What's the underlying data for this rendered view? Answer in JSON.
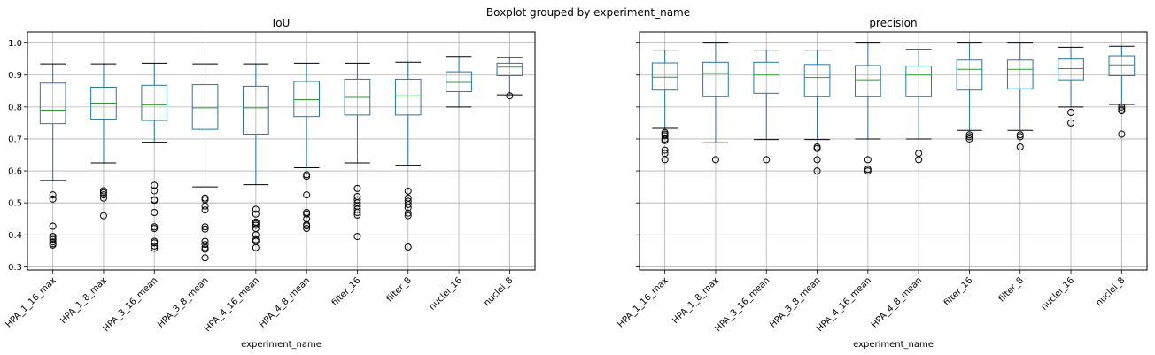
{
  "figure": {
    "suptitle": "Boxplot grouped by experiment_name"
  },
  "chart_data": [
    {
      "type": "box",
      "title": "IoU",
      "xlabel": "experiment_name",
      "ylabel": "",
      "ylim": [
        0.29,
        1.035
      ],
      "yticks": [
        0.3,
        0.4,
        0.5,
        0.6,
        0.7,
        0.8,
        0.9,
        1.0
      ],
      "ytick_labels": [
        "0.3",
        "0.4",
        "0.5",
        "0.6",
        "0.7",
        "0.8",
        "0.9",
        "1.0"
      ],
      "grid": true,
      "categories": [
        "HPA_1_16_max",
        "HPA_1_8_max",
        "HPA_3_16_mean",
        "HPA_3_8_mean",
        "HPA_4_16_mean",
        "HPA_4_8_mean",
        "filter_16",
        "filter_8",
        "nuclei_16",
        "nuclei_8"
      ],
      "boxes": [
        {
          "whislo": 0.57,
          "q1": 0.748,
          "med": 0.79,
          "q3": 0.875,
          "whishi": 0.935,
          "fliers": [
            0.525,
            0.512,
            0.427,
            0.395,
            0.39,
            0.385,
            0.378,
            0.372,
            0.368
          ]
        },
        {
          "whislo": 0.625,
          "q1": 0.762,
          "med": 0.812,
          "q3": 0.862,
          "whishi": 0.935,
          "fliers": [
            0.538,
            0.532,
            0.525,
            0.515,
            0.46
          ]
        },
        {
          "whislo": 0.69,
          "q1": 0.758,
          "med": 0.807,
          "q3": 0.868,
          "whishi": 0.937,
          "fliers": [
            0.555,
            0.538,
            0.51,
            0.508,
            0.47,
            0.425,
            0.42,
            0.38,
            0.375,
            0.365,
            0.358
          ]
        },
        {
          "whislo": 0.55,
          "q1": 0.73,
          "med": 0.797,
          "q3": 0.87,
          "whishi": 0.935,
          "fliers": [
            0.515,
            0.51,
            0.49,
            0.478,
            0.425,
            0.418,
            0.38,
            0.37,
            0.36,
            0.355,
            0.328
          ]
        },
        {
          "whislo": 0.557,
          "q1": 0.715,
          "med": 0.797,
          "q3": 0.865,
          "whishi": 0.935,
          "fliers": [
            0.48,
            0.465,
            0.44,
            0.435,
            0.43,
            0.42,
            0.4,
            0.385,
            0.38,
            0.36
          ]
        },
        {
          "whislo": 0.61,
          "q1": 0.77,
          "med": 0.823,
          "q3": 0.88,
          "whishi": 0.937,
          "fliers": [
            0.588,
            0.583,
            0.525,
            0.47,
            0.465,
            0.45,
            0.432,
            0.428,
            0.42
          ]
        },
        {
          "whislo": 0.625,
          "q1": 0.775,
          "med": 0.83,
          "q3": 0.887,
          "whishi": 0.937,
          "fliers": [
            0.545,
            0.52,
            0.51,
            0.5,
            0.49,
            0.48,
            0.47,
            0.462,
            0.395
          ]
        },
        {
          "whislo": 0.618,
          "q1": 0.775,
          "med": 0.835,
          "q3": 0.887,
          "whishi": 0.94,
          "fliers": [
            0.537,
            0.515,
            0.505,
            0.495,
            0.485,
            0.468,
            0.46,
            0.362
          ]
        },
        {
          "whislo": 0.8,
          "q1": 0.848,
          "med": 0.877,
          "q3": 0.91,
          "whishi": 0.958,
          "fliers": []
        },
        {
          "whislo": 0.838,
          "q1": 0.898,
          "med": 0.925,
          "q3": 0.937,
          "whishi": 0.955,
          "fliers": [
            0.835
          ]
        }
      ]
    },
    {
      "type": "box",
      "title": "precision",
      "xlabel": "experiment_name",
      "ylabel": "",
      "ylim": [
        0.29,
        1.035
      ],
      "yticks": [
        0.3,
        0.4,
        0.5,
        0.6,
        0.7,
        0.8,
        0.9,
        1.0
      ],
      "ytick_labels": [
        "",
        "",
        "",
        "",
        "",
        "",
        "",
        ""
      ],
      "grid": true,
      "categories": [
        "HPA_1_16_max",
        "HPA_1_8_max",
        "HPA_3_16_mean",
        "HPA_3_8_mean",
        "HPA_4_16_mean",
        "HPA_4_8_mean",
        "filter_16",
        "filter_8",
        "nuclei_16",
        "nuclei_8"
      ],
      "boxes": [
        {
          "whislo": 0.733,
          "q1": 0.853,
          "med": 0.893,
          "q3": 0.938,
          "whishi": 0.978,
          "fliers": [
            0.72,
            0.715,
            0.71,
            0.7,
            0.695,
            0.665,
            0.655,
            0.635
          ]
        },
        {
          "whislo": 0.688,
          "q1": 0.832,
          "med": 0.905,
          "q3": 0.94,
          "whishi": 1.0,
          "fliers": [
            0.635
          ]
        },
        {
          "whislo": 0.698,
          "q1": 0.843,
          "med": 0.9,
          "q3": 0.94,
          "whishi": 0.978,
          "fliers": [
            0.635
          ]
        },
        {
          "whislo": 0.698,
          "q1": 0.832,
          "med": 0.892,
          "q3": 0.933,
          "whishi": 0.978,
          "fliers": [
            0.675,
            0.67,
            0.635,
            0.6
          ]
        },
        {
          "whislo": 0.7,
          "q1": 0.832,
          "med": 0.885,
          "q3": 0.93,
          "whishi": 1.0,
          "fliers": [
            0.635,
            0.605,
            0.6
          ]
        },
        {
          "whislo": 0.7,
          "q1": 0.832,
          "med": 0.9,
          "q3": 0.928,
          "whishi": 0.98,
          "fliers": [
            0.655,
            0.635
          ]
        },
        {
          "whislo": 0.727,
          "q1": 0.853,
          "med": 0.918,
          "q3": 0.947,
          "whishi": 1.0,
          "fliers": [
            0.713,
            0.707,
            0.7
          ]
        },
        {
          "whislo": 0.727,
          "q1": 0.857,
          "med": 0.918,
          "q3": 0.947,
          "whishi": 1.0,
          "fliers": [
            0.713,
            0.707,
            0.675
          ]
        },
        {
          "whislo": 0.8,
          "q1": 0.885,
          "med": 0.92,
          "q3": 0.95,
          "whishi": 0.987,
          "fliers": [
            0.783,
            0.75
          ]
        },
        {
          "whislo": 0.808,
          "q1": 0.898,
          "med": 0.932,
          "q3": 0.96,
          "whishi": 0.99,
          "fliers": [
            0.8,
            0.793,
            0.788,
            0.715
          ]
        }
      ]
    }
  ],
  "style": {
    "box_color": "#1f77b4",
    "median_color": "#2ca02c",
    "whisker_color": "#000000",
    "grid_color": "#b0b0b0"
  }
}
